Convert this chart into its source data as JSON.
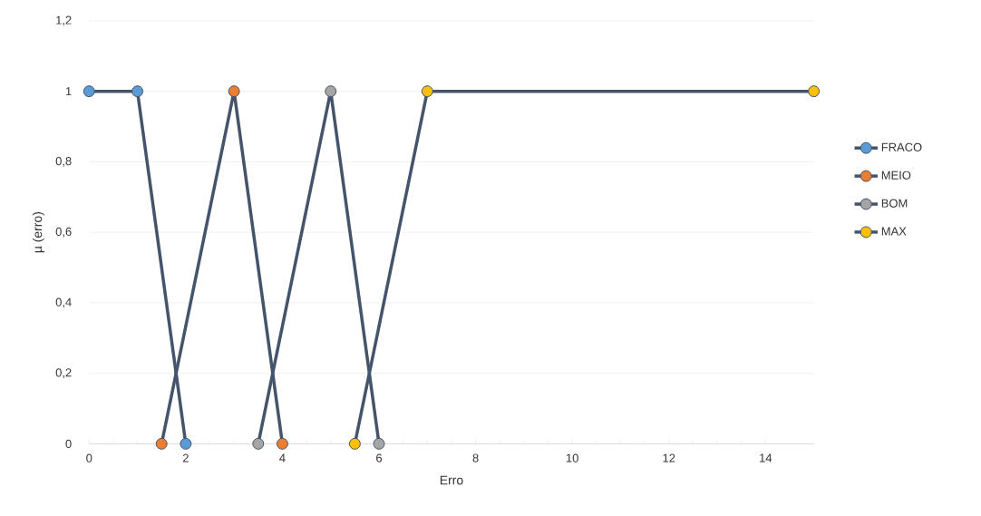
{
  "chart_data": {
    "type": "line",
    "xlabel": "Erro",
    "ylabel": "µ (erro)",
    "xlim": [
      0,
      15
    ],
    "xticks": [
      0,
      2,
      4,
      6,
      8,
      10,
      12,
      14
    ],
    "ylim": [
      0,
      1.2
    ],
    "yticks": [
      0,
      {
        "value": 0.2,
        "label": "0,2"
      },
      {
        "value": 0.4,
        "label": "0,4"
      },
      {
        "value": 0.6,
        "label": "0,6"
      },
      {
        "value": 0.8,
        "label": "0,8"
      },
      1,
      {
        "value": 1.2,
        "label": "1,2"
      }
    ],
    "grid": "y",
    "legend": "right",
    "marker": "circle",
    "line_style": "solid",
    "series": [
      {
        "name": "FRACO",
        "color": "#5b9bd5",
        "x": [
          0,
          1,
          2
        ],
        "values": [
          1,
          1,
          0
        ]
      },
      {
        "name": "MEIO",
        "color": "#ed7d31",
        "x": [
          1.5,
          3,
          4
        ],
        "values": [
          0,
          1,
          0
        ]
      },
      {
        "name": "BOM",
        "color": "#a5a5a5",
        "x": [
          3.5,
          5,
          6
        ],
        "values": [
          0,
          1,
          0
        ]
      },
      {
        "name": "MAX",
        "color": "#ffc000",
        "x": [
          5.5,
          7,
          15
        ],
        "values": [
          0,
          1,
          1
        ]
      }
    ]
  }
}
